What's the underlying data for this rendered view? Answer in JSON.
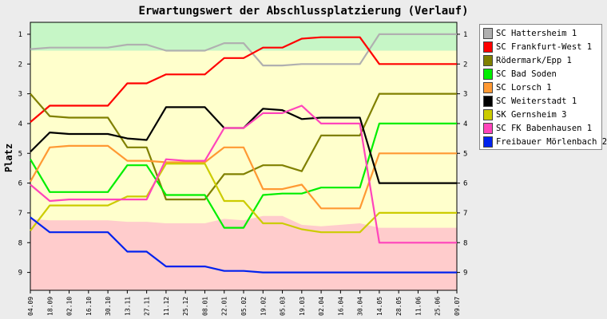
{
  "chart_data": {
    "type": "line",
    "title": "Erwartungswert der Abschlussplatzierung (Verlauf)",
    "ylabel": "Platz",
    "xlabel": "",
    "ylim": [
      0.6,
      9.6
    ],
    "y_reversed": true,
    "yticks": [
      1,
      2,
      3,
      4,
      5,
      6,
      7,
      8,
      9
    ],
    "categories": [
      "04.09",
      "18.09",
      "02.10",
      "16.10",
      "30.10",
      "13.11",
      "27.11",
      "11.12",
      "25.12",
      "08.01",
      "22.01",
      "05.02",
      "19.02",
      "05.03",
      "19.03",
      "02.04",
      "16.04",
      "30.04",
      "14.05",
      "28.05",
      "11.06",
      "25.06",
      "09.07"
    ],
    "zones": {
      "green_top": [
        1.55,
        1.55,
        1.55,
        1.55,
        1.55,
        1.55,
        1.55,
        1.55,
        1.55,
        1.55,
        1.55,
        1.55,
        1.55,
        1.55,
        1.55,
        1.55,
        1.55,
        1.55,
        1.55,
        1.55,
        1.55,
        1.55,
        1.55
      ],
      "red_top": [
        7.2,
        7.25,
        7.25,
        7.25,
        7.25,
        7.3,
        7.3,
        7.35,
        7.35,
        7.35,
        7.2,
        7.25,
        7.1,
        7.1,
        7.4,
        7.45,
        7.4,
        7.35,
        7.5,
        7.5,
        7.5,
        7.5,
        7.5
      ],
      "colors": {
        "green": "#c6f6c6",
        "yellow": "#ffffcc",
        "red": "#ffcccc"
      }
    },
    "grid": false,
    "legend_position": "right",
    "series": [
      {
        "name": "SC Hattersheim 1",
        "color": "#b0b0b0",
        "values": [
          1.5,
          1.45,
          1.45,
          1.45,
          1.45,
          1.35,
          1.35,
          1.55,
          1.55,
          1.55,
          1.3,
          1.3,
          2.05,
          2.05,
          2.0,
          2.0,
          2.0,
          2.0,
          1.0,
          1.0,
          1.0,
          1.0,
          1.0
        ]
      },
      {
        "name": "SC Frankfurt-West 1",
        "color": "#ff0000",
        "values": [
          3.95,
          3.4,
          3.4,
          3.4,
          3.4,
          2.65,
          2.65,
          2.35,
          2.35,
          2.35,
          1.8,
          1.8,
          1.45,
          1.45,
          1.15,
          1.1,
          1.1,
          1.1,
          2.0,
          2.0,
          2.0,
          2.0,
          2.0
        ]
      },
      {
        "name": "Rödermark/Epp 1",
        "color": "#808000",
        "values": [
          3.0,
          3.75,
          3.8,
          3.8,
          3.8,
          4.8,
          4.8,
          6.55,
          6.55,
          6.55,
          5.7,
          5.7,
          5.4,
          5.4,
          5.6,
          4.4,
          4.4,
          4.4,
          3.0,
          3.0,
          3.0,
          3.0,
          3.0
        ]
      },
      {
        "name": "SC Bad Soden",
        "color": "#00ee00",
        "values": [
          5.2,
          6.3,
          6.3,
          6.3,
          6.3,
          5.4,
          5.4,
          6.4,
          6.4,
          6.4,
          7.5,
          7.5,
          6.4,
          6.35,
          6.35,
          6.15,
          6.15,
          6.15,
          4.0,
          4.0,
          4.0,
          4.0,
          4.0
        ]
      },
      {
        "name": "SC Lorsch 1",
        "color": "#ff9933",
        "values": [
          5.95,
          4.8,
          4.75,
          4.75,
          4.75,
          5.25,
          5.25,
          5.3,
          5.3,
          5.3,
          4.8,
          4.8,
          6.2,
          6.2,
          6.05,
          6.85,
          6.85,
          6.85,
          5.0,
          5.0,
          5.0,
          5.0,
          5.0
        ]
      },
      {
        "name": "SC Weiterstadt 1",
        "color": "#000000",
        "values": [
          4.95,
          4.3,
          4.35,
          4.35,
          4.35,
          4.5,
          4.55,
          3.45,
          3.45,
          3.45,
          4.15,
          4.15,
          3.5,
          3.55,
          3.85,
          3.8,
          3.8,
          3.8,
          6.0,
          6.0,
          6.0,
          6.0,
          6.0
        ]
      },
      {
        "name": "SK Gernsheim 3",
        "color": "#cccc00",
        "values": [
          7.6,
          6.75,
          6.75,
          6.75,
          6.75,
          6.45,
          6.45,
          5.35,
          5.35,
          5.35,
          6.6,
          6.6,
          7.35,
          7.35,
          7.55,
          7.65,
          7.65,
          7.65,
          7.0,
          7.0,
          7.0,
          7.0,
          7.0
        ]
      },
      {
        "name": "SC FK Babenhausen 1",
        "color": "#ff44bb",
        "values": [
          6.05,
          6.6,
          6.55,
          6.55,
          6.55,
          6.55,
          6.55,
          5.2,
          5.25,
          5.25,
          4.15,
          4.15,
          3.65,
          3.65,
          3.4,
          4.0,
          4.0,
          4.0,
          8.0,
          8.0,
          8.0,
          8.0,
          8.0
        ]
      },
      {
        "name": "Freibauer Mörlenbach 2",
        "color": "#0022ee",
        "values": [
          7.15,
          7.65,
          7.65,
          7.65,
          7.65,
          8.3,
          8.3,
          8.8,
          8.8,
          8.8,
          8.95,
          8.95,
          9.0,
          9.0,
          9.0,
          9.0,
          9.0,
          9.0,
          9.0,
          9.0,
          9.0,
          9.0,
          9.0
        ]
      }
    ]
  }
}
